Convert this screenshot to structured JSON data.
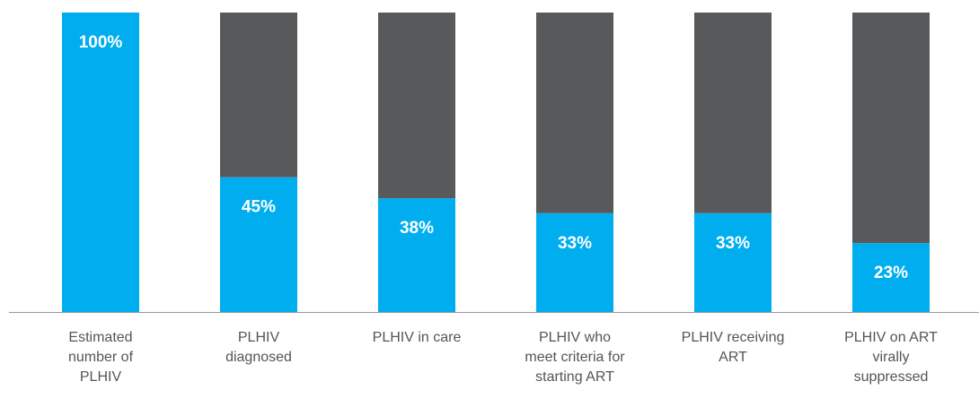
{
  "chart_data": {
    "type": "stacked_bar",
    "categories": [
      "Estimated number of PLHIV",
      "PLHIV diagnosed",
      "PLHIV in care",
      "PLHIV who meet criteria for starting ART",
      "PLHIV receiving ART",
      "PLHIV on ART virally suppressed"
    ],
    "series": [
      {
        "color": "#00aeef",
        "values": [
          100,
          45,
          38,
          33,
          33,
          23
        ],
        "value_labels": [
          "100%",
          "45%",
          "38%",
          "33%",
          "33%",
          "23%"
        ]
      },
      {
        "color": "#58595b",
        "values": [
          0,
          55,
          62,
          67,
          67,
          77
        ]
      }
    ],
    "ylim": [
      0,
      100
    ]
  }
}
